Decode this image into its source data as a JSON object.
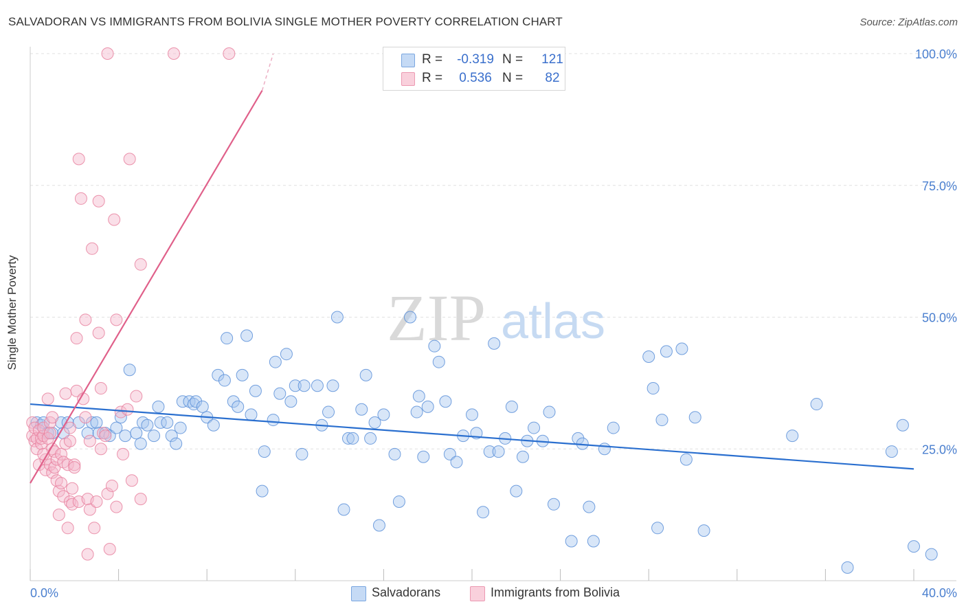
{
  "title": "SALVADORAN VS IMMIGRANTS FROM BOLIVIA SINGLE MOTHER POVERTY CORRELATION CHART",
  "source": "Source: ZipAtlas.com",
  "watermark": {
    "zip": "ZIP",
    "atlas": "atlas"
  },
  "legend": {
    "rows": [
      {
        "r_label": "R =",
        "r_value": "-0.319",
        "n_label": "N =",
        "n_value": "121",
        "color": "#a9c8f0"
      },
      {
        "r_label": "R =",
        "r_value": "0.536",
        "n_label": "N =",
        "n_value": "82",
        "color": "#f5b8cb"
      }
    ]
  },
  "bottom_legend": {
    "salvadorans": "Salvadorans",
    "bolivia": "Immigrants from Bolivia"
  },
  "colors": {
    "blue_fill": "#a9c8f0",
    "blue_stroke": "#5b8fd8",
    "blue_line": "#2a6fcf",
    "pink_fill": "#f5b8cb",
    "pink_stroke": "#e8819f",
    "pink_line": "#e0608a",
    "tick_label": "#4a7fcf",
    "grid": "#e0e0e0"
  },
  "chart_data": {
    "type": "scatter",
    "title": "SALVADORAN VS IMMIGRANTS FROM BOLIVIA SINGLE MOTHER POVERTY CORRELATION CHART",
    "xlabel": "",
    "ylabel": "Single Mother Poverty",
    "xlim": [
      0,
      40
    ],
    "ylim": [
      0,
      100
    ],
    "x_tick_labels": [
      "0.0%",
      "40.0%"
    ],
    "y_tick_labels": [
      "25.0%",
      "50.0%",
      "75.0%",
      "100.0%"
    ],
    "y_ticks": [
      25,
      50,
      75,
      100
    ],
    "grid": true,
    "legend_position": "top-center",
    "series": [
      {
        "name": "Salvadorans",
        "color": "#a9c8f0",
        "trend": {
          "x": [
            0,
            40
          ],
          "y": [
            33.5,
            21.2
          ]
        },
        "points": [
          [
            0.3,
            30
          ],
          [
            0.5,
            29.5
          ],
          [
            0.6,
            30
          ],
          [
            0.8,
            28
          ],
          [
            1.0,
            28
          ],
          [
            1.4,
            30
          ],
          [
            1.5,
            28
          ],
          [
            1.7,
            30
          ],
          [
            2.2,
            30
          ],
          [
            2.6,
            28
          ],
          [
            2.8,
            30
          ],
          [
            3.0,
            30
          ],
          [
            3.1,
            28
          ],
          [
            3.4,
            28
          ],
          [
            3.6,
            27.5
          ],
          [
            3.9,
            29
          ],
          [
            4.1,
            31
          ],
          [
            4.3,
            27.5
          ],
          [
            4.5,
            40
          ],
          [
            4.8,
            28
          ],
          [
            5.0,
            26
          ],
          [
            5.1,
            30
          ],
          [
            5.3,
            29.5
          ],
          [
            5.6,
            27.5
          ],
          [
            5.8,
            33
          ],
          [
            5.9,
            30
          ],
          [
            6.2,
            30
          ],
          [
            6.4,
            27.5
          ],
          [
            6.6,
            26
          ],
          [
            6.8,
            29
          ],
          [
            6.9,
            34
          ],
          [
            7.2,
            34
          ],
          [
            7.4,
            33.5
          ],
          [
            7.5,
            34
          ],
          [
            7.8,
            33
          ],
          [
            8.0,
            31
          ],
          [
            8.3,
            29.5
          ],
          [
            8.5,
            39
          ],
          [
            8.8,
            38
          ],
          [
            8.9,
            46
          ],
          [
            9.2,
            34
          ],
          [
            9.4,
            33
          ],
          [
            9.6,
            39
          ],
          [
            9.8,
            46.5
          ],
          [
            10.0,
            31.5
          ],
          [
            10.2,
            36
          ],
          [
            10.5,
            17
          ],
          [
            10.6,
            24.5
          ],
          [
            11.0,
            30.5
          ],
          [
            11.1,
            41.5
          ],
          [
            11.3,
            35.5
          ],
          [
            11.6,
            43
          ],
          [
            11.8,
            34
          ],
          [
            12.0,
            37
          ],
          [
            12.3,
            24
          ],
          [
            12.4,
            37
          ],
          [
            13.0,
            37
          ],
          [
            13.2,
            29.5
          ],
          [
            13.5,
            32
          ],
          [
            13.7,
            37
          ],
          [
            13.9,
            50
          ],
          [
            14.2,
            13.5
          ],
          [
            14.4,
            27
          ],
          [
            14.6,
            27
          ],
          [
            15.0,
            32.5
          ],
          [
            15.2,
            39
          ],
          [
            15.4,
            27
          ],
          [
            15.6,
            30
          ],
          [
            15.8,
            10.5
          ],
          [
            16.0,
            31.5
          ],
          [
            16.5,
            24
          ],
          [
            16.7,
            15
          ],
          [
            17.2,
            50
          ],
          [
            17.5,
            32
          ],
          [
            17.6,
            35
          ],
          [
            17.8,
            23.5
          ],
          [
            18.0,
            33
          ],
          [
            18.3,
            44.5
          ],
          [
            18.5,
            41.5
          ],
          [
            18.8,
            34
          ],
          [
            19.0,
            24
          ],
          [
            19.3,
            22.5
          ],
          [
            19.6,
            27.5
          ],
          [
            20.0,
            31.5
          ],
          [
            20.2,
            28
          ],
          [
            20.5,
            13
          ],
          [
            20.8,
            24.5
          ],
          [
            21.0,
            45
          ],
          [
            21.2,
            24.5
          ],
          [
            21.5,
            27
          ],
          [
            21.8,
            33
          ],
          [
            22.0,
            17
          ],
          [
            22.3,
            23.5
          ],
          [
            22.5,
            26.5
          ],
          [
            22.8,
            29
          ],
          [
            23.2,
            26.5
          ],
          [
            23.5,
            32
          ],
          [
            23.7,
            14.5
          ],
          [
            24.5,
            7.5
          ],
          [
            24.8,
            27
          ],
          [
            25.0,
            26
          ],
          [
            25.3,
            14
          ],
          [
            25.5,
            7.5
          ],
          [
            26.0,
            25
          ],
          [
            26.4,
            29
          ],
          [
            28.0,
            42.5
          ],
          [
            28.2,
            36.5
          ],
          [
            28.4,
            10
          ],
          [
            28.6,
            30.5
          ],
          [
            28.8,
            43.5
          ],
          [
            29.5,
            44
          ],
          [
            29.7,
            23
          ],
          [
            30.1,
            31
          ],
          [
            30.5,
            9.5
          ],
          [
            34.5,
            27.5
          ],
          [
            35.6,
            33.5
          ],
          [
            37.0,
            2.5
          ],
          [
            39.0,
            24.5
          ],
          [
            39.5,
            29.5
          ],
          [
            40.0,
            6.5
          ],
          [
            40.8,
            5
          ]
        ]
      },
      {
        "name": "Immigrants from Bolivia",
        "color": "#f5b8cb",
        "trend": {
          "x": [
            0,
            10.5
          ],
          "y": [
            18.5,
            93
          ]
        },
        "trend_dashed": {
          "x": [
            10.5,
            11.0
          ],
          "y": [
            93,
            100
          ]
        },
        "points": [
          [
            0.1,
            30
          ],
          [
            0.1,
            27.5
          ],
          [
            0.2,
            26.5
          ],
          [
            0.2,
            29
          ],
          [
            0.3,
            27
          ],
          [
            0.3,
            25
          ],
          [
            0.4,
            22
          ],
          [
            0.4,
            28.5
          ],
          [
            0.5,
            26
          ],
          [
            0.5,
            27
          ],
          [
            0.6,
            27.5
          ],
          [
            0.6,
            29
          ],
          [
            0.7,
            23
          ],
          [
            0.7,
            21
          ],
          [
            0.8,
            34.5
          ],
          [
            0.8,
            27
          ],
          [
            0.9,
            30
          ],
          [
            0.9,
            22
          ],
          [
            1.0,
            25
          ],
          [
            1.0,
            20.5
          ],
          [
            1.1,
            24.5
          ],
          [
            1.1,
            21.5
          ],
          [
            1.2,
            19
          ],
          [
            1.2,
            23
          ],
          [
            1.3,
            17
          ],
          [
            1.3,
            12.5
          ],
          [
            1.4,
            24
          ],
          [
            1.4,
            18.5
          ],
          [
            1.5,
            22.5
          ],
          [
            1.5,
            16
          ],
          [
            1.6,
            35.5
          ],
          [
            1.6,
            26
          ],
          [
            1.7,
            22
          ],
          [
            1.7,
            10
          ],
          [
            1.8,
            15
          ],
          [
            1.8,
            26.5
          ],
          [
            1.9,
            17.5
          ],
          [
            1.9,
            14.5
          ],
          [
            2.0,
            22
          ],
          [
            2.0,
            21.5
          ],
          [
            2.1,
            46
          ],
          [
            2.1,
            36
          ],
          [
            2.2,
            15
          ],
          [
            2.2,
            80
          ],
          [
            2.3,
            72.5
          ],
          [
            2.4,
            34.5
          ],
          [
            2.5,
            49.5
          ],
          [
            2.5,
            31
          ],
          [
            2.6,
            15.5
          ],
          [
            2.6,
            5
          ],
          [
            2.7,
            13.5
          ],
          [
            2.8,
            63
          ],
          [
            2.9,
            10
          ],
          [
            3.0,
            15
          ],
          [
            3.1,
            47
          ],
          [
            3.1,
            72
          ],
          [
            3.2,
            36.5
          ],
          [
            3.2,
            25
          ],
          [
            3.3,
            28
          ],
          [
            3.4,
            27.5
          ],
          [
            3.5,
            16.5
          ],
          [
            3.6,
            6
          ],
          [
            3.7,
            18
          ],
          [
            3.8,
            68.5
          ],
          [
            3.9,
            49.5
          ],
          [
            3.9,
            14
          ],
          [
            4.1,
            32
          ],
          [
            4.2,
            24
          ],
          [
            4.4,
            32.5
          ],
          [
            4.5,
            80
          ],
          [
            4.6,
            19
          ],
          [
            4.8,
            35
          ],
          [
            5.0,
            60
          ],
          [
            5.0,
            15.5
          ],
          [
            3.5,
            100
          ],
          [
            6.5,
            100
          ],
          [
            9.0,
            100
          ],
          [
            0.6,
            24
          ],
          [
            1.0,
            31
          ],
          [
            1.8,
            29
          ],
          [
            2.7,
            26.5
          ],
          [
            0.9,
            28
          ]
        ]
      }
    ]
  }
}
